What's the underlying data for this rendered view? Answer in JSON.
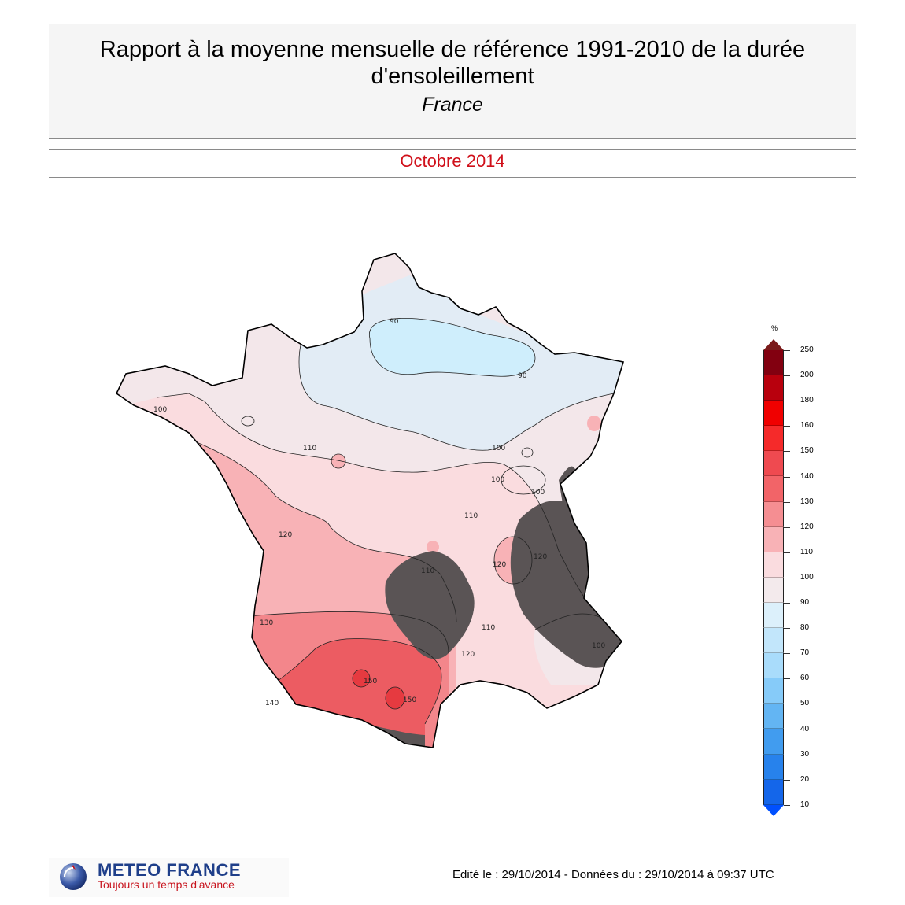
{
  "header": {
    "title_line1": "Rapport à la moyenne mensuelle de référence 1991-2010 de la durée",
    "title_line2": "d'ensoleillement",
    "subtitle": "France",
    "period": "Octobre 2014"
  },
  "map": {
    "contour_labels": [
      "90",
      "90",
      "100",
      "100",
      "100",
      "100",
      "100",
      "110",
      "110",
      "110",
      "110",
      "120",
      "120",
      "120",
      "120",
      "130",
      "140",
      "150",
      "150"
    ],
    "zone_colors": {
      "under_90": "#cfeefc",
      "r90_100": "#e2ecf5",
      "r100_110": "#f3e7ea",
      "r110_120": "#fadcdf",
      "r120_130": "#f8b2b6",
      "r130_140": "#f3868b",
      "r140_150": "#ec5c62",
      "r150_160": "#e63a40",
      "relief_mask": "#5a5455"
    }
  },
  "legend": {
    "unit": "%",
    "labels": [
      "250",
      "200",
      "180",
      "160",
      "150",
      "140",
      "130",
      "120",
      "110",
      "100",
      "90",
      "80",
      "70",
      "60",
      "50",
      "40",
      "30",
      "20",
      "10"
    ],
    "colors": [
      "#820010",
      "#b8000d",
      "#f00000",
      "#f52a2a",
      "#ef4a50",
      "#f26468",
      "#f58e92",
      "#f8b2b6",
      "#fadcdf",
      "#f3eaec",
      "#dcf0fb",
      "#c2e6fb",
      "#a9dcfb",
      "#86cbf9",
      "#63b5f3",
      "#419cef",
      "#2782ec",
      "#1466ea",
      "#0050ff"
    ],
    "top_cap_color": "#7a1a1a",
    "bottom_cap_color": "#0050ff"
  },
  "logo": {
    "name": "METEO FRANCE",
    "tagline": "Toujours un temps d'avance"
  },
  "footer": {
    "text": "Edité le : 29/10/2014 - Données du : 29/10/2014 à 09:37 UTC"
  }
}
